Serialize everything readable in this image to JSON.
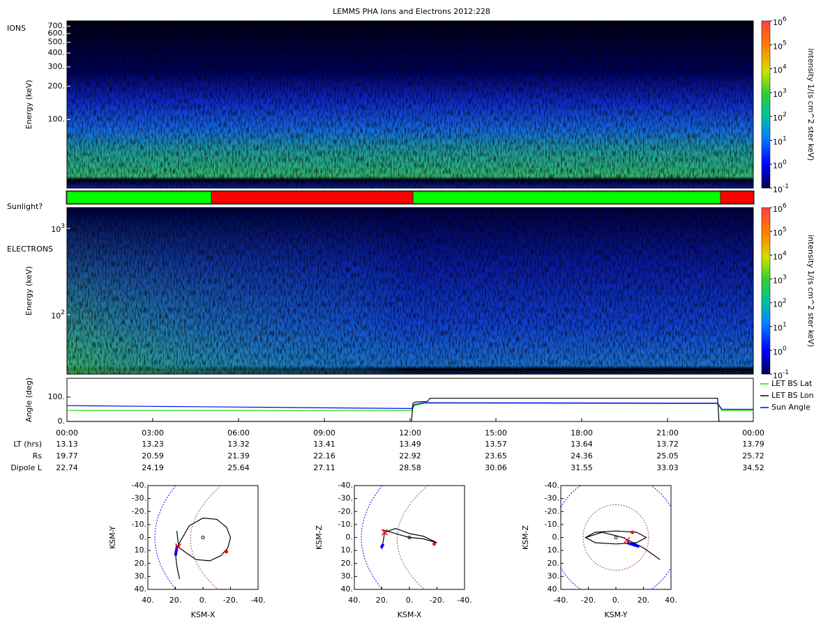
{
  "title": "LEMMS PHA Ions and Electrons  2012:228",
  "time_axis": {
    "xlim": [
      0,
      24
    ],
    "ticks": [
      {
        "value": 0,
        "label": "00:00"
      },
      {
        "value": 3,
        "label": "03:00"
      },
      {
        "value": 6,
        "label": "06:00"
      },
      {
        "value": 9,
        "label": "09:00"
      },
      {
        "value": 12,
        "label": "12:00"
      },
      {
        "value": 15,
        "label": "15:00"
      },
      {
        "value": 18,
        "label": "18:00"
      },
      {
        "value": 21,
        "label": "21:00"
      },
      {
        "value": 24,
        "label": "00:00"
      }
    ]
  },
  "ephemeris": [
    {
      "label": "LT (hrs)",
      "values": [
        13.13,
        13.23,
        13.32,
        13.41,
        13.49,
        13.57,
        13.64,
        13.72,
        13.79
      ]
    },
    {
      "label": "Rs",
      "values": [
        19.77,
        20.59,
        21.39,
        22.16,
        22.92,
        23.65,
        24.36,
        25.05,
        25.72
      ]
    },
    {
      "label": "Dipole L",
      "values": [
        22.74,
        24.19,
        25.64,
        27.11,
        28.58,
        30.06,
        31.55,
        33.03,
        34.52
      ]
    }
  ],
  "chart_data": [
    {
      "type": "spectrogram",
      "label": "IONS",
      "ylabel": "Energy (keV)",
      "log_scale": true,
      "ylim": [
        24,
        780
      ],
      "yticks": [
        {
          "value": 700,
          "label": "700."
        },
        {
          "value": 600,
          "label": "600."
        },
        {
          "value": 500,
          "label": "500."
        },
        {
          "value": 400,
          "label": "400."
        },
        {
          "value": 300,
          "label": "300."
        },
        {
          "value": 200,
          "label": "200."
        },
        {
          "value": 100,
          "label": "100."
        }
      ],
      "colorbar": {
        "label": "intensity 1/(s cm^2 ster keV)",
        "log_scale": true,
        "lim": [
          0.1,
          1000000
        ],
        "ticks": [
          {
            "value": 1000000,
            "base": "10",
            "exp": "6"
          },
          {
            "value": 100000,
            "base": "10",
            "exp": "5"
          },
          {
            "value": 10000,
            "base": "10",
            "exp": "4"
          },
          {
            "value": 1000,
            "base": "10",
            "exp": "3"
          },
          {
            "value": 100,
            "base": "10",
            "exp": "2"
          },
          {
            "value": 10,
            "base": "10",
            "exp": "1"
          },
          {
            "value": 1,
            "base": "10",
            "exp": "0"
          },
          {
            "value": 0.1,
            "base": "10",
            "exp": "-1"
          }
        ]
      }
    },
    {
      "type": "timeline",
      "label": "Sunlight?",
      "segments": [
        {
          "start": 0,
          "end": 5.05,
          "color": "#00ff00"
        },
        {
          "start": 5.05,
          "end": 12.1,
          "color": "#ff0000"
        },
        {
          "start": 12.1,
          "end": 22.85,
          "color": "#00ff00"
        },
        {
          "start": 22.85,
          "end": 24,
          "color": "#ff0000"
        }
      ]
    },
    {
      "type": "spectrogram",
      "label": "ELECTRONS",
      "ylabel": "Energy (keV)",
      "log_scale": true,
      "ylim": [
        20.6,
        1740
      ],
      "yticks": [
        {
          "value": 1000,
          "base": "10",
          "exp": "3"
        },
        {
          "value": 100,
          "base": "10",
          "exp": "2"
        }
      ],
      "colorbar": {
        "label": "intensity 1/(s cm^2 ster keV)",
        "log_scale": true,
        "lim": [
          0.1,
          1000000
        ],
        "ticks": [
          {
            "value": 1000000,
            "base": "10",
            "exp": "6"
          },
          {
            "value": 100000,
            "base": "10",
            "exp": "5"
          },
          {
            "value": 10000,
            "base": "10",
            "exp": "4"
          },
          {
            "value": 1000,
            "base": "10",
            "exp": "3"
          },
          {
            "value": 100,
            "base": "10",
            "exp": "2"
          },
          {
            "value": 10,
            "base": "10",
            "exp": "1"
          },
          {
            "value": 1,
            "base": "10",
            "exp": "0"
          },
          {
            "value": 0.1,
            "base": "10",
            "exp": "-1"
          }
        ]
      }
    },
    {
      "type": "line",
      "ylabel": "Angle (deg)",
      "ylim": [
        0,
        177
      ],
      "yticks": [
        {
          "value": 0,
          "label": "0."
        },
        {
          "value": 100,
          "label": "100."
        }
      ],
      "legend": "right",
      "series": [
        {
          "name": "LET BS Lat",
          "color": "#00e000",
          "x": [
            0,
            12.05,
            12.15,
            12.5,
            22.75,
            22.9,
            24
          ],
          "values": [
            45,
            45,
            65,
            75,
            73,
            45,
            45
          ]
        },
        {
          "name": "LET BS Lon",
          "color": "#000000",
          "x": [
            0,
            12.05,
            12.1,
            12.2,
            12.6,
            12.7,
            22.75,
            22.8,
            24
          ],
          "values": [
            0,
            0,
            75,
            80,
            82,
            95,
            95,
            0,
            0
          ]
        },
        {
          "name": "Sun Angle",
          "color": "#0000ff",
          "x": [
            0,
            3,
            6,
            9,
            12.05,
            12.15,
            12.5,
            22.75,
            22.9,
            24
          ],
          "values": [
            65,
            62,
            59,
            56,
            53,
            70,
            77,
            75,
            50,
            50
          ]
        }
      ]
    },
    {
      "type": "orbit",
      "xlabel": "KSM-X",
      "ylabel": "KSM-Y",
      "xlim": [
        40,
        -40
      ],
      "ylim": [
        40,
        -40
      ],
      "xticks": [
        {
          "value": 40,
          "label": "40."
        },
        {
          "value": 20,
          "label": "20."
        },
        {
          "value": 0,
          "label": "0."
        },
        {
          "value": -20,
          "label": "-20."
        },
        {
          "value": -40,
          "label": "-40."
        }
      ],
      "yticks": [
        {
          "value": -40,
          "label": "-40."
        },
        {
          "value": -30,
          "label": "-30."
        },
        {
          "value": -20,
          "label": "-20."
        },
        {
          "value": -10,
          "label": "-10."
        },
        {
          "value": 0,
          "label": "0."
        },
        {
          "value": 10,
          "label": "10."
        },
        {
          "value": 20,
          "label": "20."
        },
        {
          "value": 30,
          "label": "30."
        },
        {
          "value": 40,
          "label": "40."
        }
      ],
      "trajectory": {
        "x": [
          17,
          19,
          20,
          17,
          10,
          0,
          -10,
          -17,
          -20,
          -18,
          -13,
          -5,
          5,
          12,
          17,
          18,
          19
        ],
        "y": [
          32,
          22,
          12,
          4,
          -9,
          -15,
          -14,
          -8,
          0,
          8,
          14,
          18,
          17,
          12,
          8,
          4,
          -5
        ]
      },
      "track": {
        "x": [
          20,
          19.5,
          19,
          18.5
        ],
        "y": [
          14,
          11,
          8,
          6
        ]
      },
      "start": {
        "x": 18,
        "y": 7
      },
      "end": {
        "x": -17,
        "y": 11
      }
    },
    {
      "type": "orbit",
      "xlabel": "KSM-X",
      "ylabel": "KSM-Z",
      "xlim": [
        40,
        -40
      ],
      "ylim": [
        40,
        -40
      ],
      "xticks": [
        {
          "value": 40,
          "label": "40."
        },
        {
          "value": 20,
          "label": "20."
        },
        {
          "value": 0,
          "label": "0."
        },
        {
          "value": -20,
          "label": "-20."
        },
        {
          "value": -40,
          "label": "-40."
        }
      ],
      "yticks": [
        {
          "value": -40,
          "label": "-40."
        },
        {
          "value": -30,
          "label": "-30."
        },
        {
          "value": -20,
          "label": "-20."
        },
        {
          "value": -10,
          "label": "-10."
        },
        {
          "value": 0,
          "label": "0."
        },
        {
          "value": 10,
          "label": "10."
        },
        {
          "value": 20,
          "label": "20."
        },
        {
          "value": 30,
          "label": "30."
        },
        {
          "value": 40,
          "label": "40."
        }
      ],
      "trajectory": {
        "x": [
          20,
          18,
          10,
          0,
          -10,
          -18,
          -20,
          -10,
          0,
          10,
          20
        ],
        "y": [
          9,
          -4,
          -7,
          -3,
          -1,
          3,
          4,
          1,
          0,
          -3,
          -6
        ]
      },
      "track": {
        "x": [
          20.5,
          20,
          19.5,
          19
        ],
        "y": [
          8,
          7,
          6,
          5
        ]
      },
      "start": {
        "x": 18,
        "y": -4
      },
      "end": {
        "x": -18,
        "y": 5
      }
    },
    {
      "type": "orbit",
      "xlabel": "KSM-Y",
      "ylabel": "KSM-Z",
      "xlim": [
        -40,
        40
      ],
      "ylim": [
        40,
        -40
      ],
      "xticks": [
        {
          "value": -40,
          "label": "-40."
        },
        {
          "value": -20,
          "label": "-20."
        },
        {
          "value": 0,
          "label": "0."
        },
        {
          "value": 20,
          "label": "20."
        },
        {
          "value": 40,
          "label": "40."
        }
      ],
      "yticks": [
        {
          "value": -40,
          "label": "-40."
        },
        {
          "value": -30,
          "label": "-30."
        },
        {
          "value": -20,
          "label": "-20."
        },
        {
          "value": -10,
          "label": "-10."
        },
        {
          "value": 0,
          "label": "0."
        },
        {
          "value": 10,
          "label": "10."
        },
        {
          "value": 20,
          "label": "20."
        },
        {
          "value": 30,
          "label": "30."
        },
        {
          "value": 40,
          "label": "40."
        }
      ],
      "trajectory": {
        "x": [
          -22,
          -15,
          0,
          15,
          22,
          15,
          0,
          -15,
          -22,
          -10,
          5,
          20,
          32
        ],
        "y": [
          0,
          -4,
          -5,
          -4,
          0,
          4,
          5,
          4,
          0,
          -4,
          0,
          8,
          17
        ]
      },
      "track": {
        "x": [
          8,
          11,
          14,
          17
        ],
        "y": [
          4,
          5,
          6,
          7
        ]
      },
      "start": {
        "x": 8,
        "y": 2
      },
      "end": {
        "x": 12,
        "y": -4
      }
    }
  ]
}
